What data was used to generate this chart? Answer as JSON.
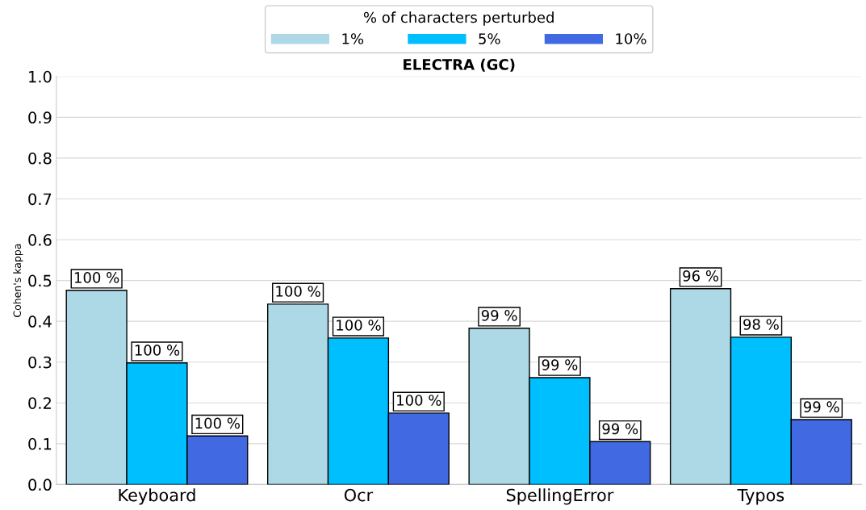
{
  "chart_data": {
    "type": "bar",
    "title": "ELECTRA (GC)",
    "ylabel": "Cohen's kappa",
    "legend_title": "% of characters perturbed",
    "categories": [
      "Keyboard",
      "Ocr",
      "SpellingError",
      "Typos"
    ],
    "series": [
      {
        "name": "1%",
        "color": "#add8e6",
        "values": [
          0.476,
          0.442,
          0.383,
          0.48
        ]
      },
      {
        "name": "5%",
        "color": "#00bfff",
        "values": [
          0.298,
          0.359,
          0.262,
          0.361
        ]
      },
      {
        "name": "10%",
        "color": "#4169e1",
        "values": [
          0.119,
          0.175,
          0.105,
          0.159
        ]
      }
    ],
    "annotations": [
      "100 %",
      "100 %",
      "99 %",
      "96 %",
      "100 %",
      "100 %",
      "99 %",
      "98 %",
      "100 %",
      "100 %",
      "99 %",
      "99 %"
    ],
    "ylim": [
      0,
      1
    ],
    "yticks": [
      {
        "value": 0,
        "label": "0.0"
      },
      0.1,
      0.2,
      0.3,
      0.4,
      0.5,
      0.6,
      0.7,
      0.8,
      0.9,
      {
        "value": 1,
        "label": "1.0"
      }
    ],
    "grid": "y",
    "legend": "top"
  }
}
